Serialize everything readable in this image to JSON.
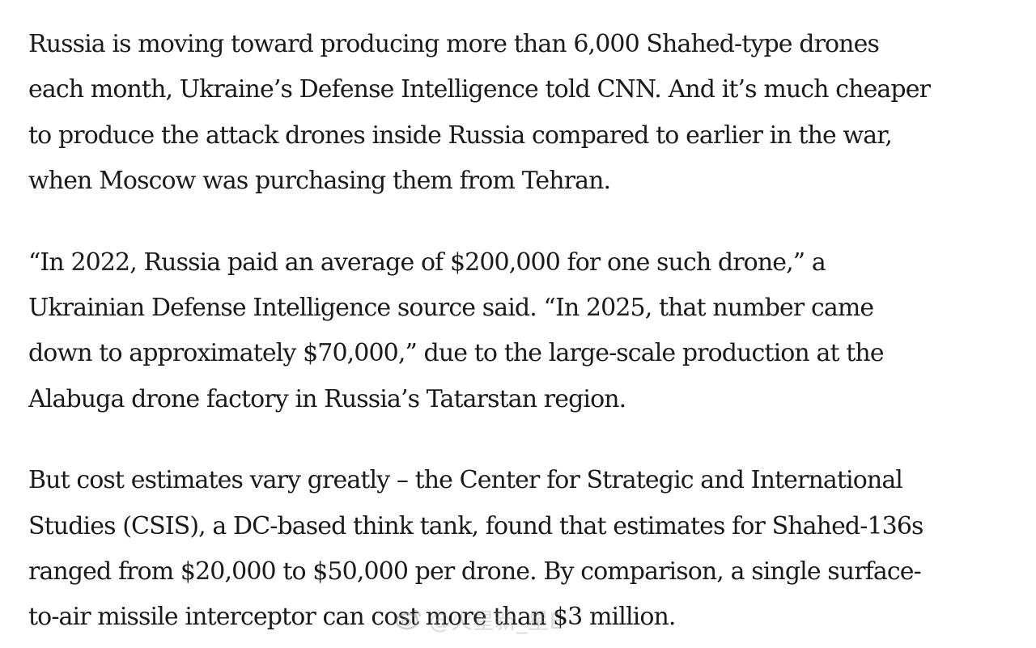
{
  "article": {
    "paragraphs": [
      {
        "lines": [
          "Russia is moving toward producing more than 6,000 Shahed-type drones",
          "each month, Ukraine’s Defense Intelligence told CNN. And it’s much cheaper",
          "to produce the attack drones inside Russia compared to earlier in the war,",
          "when Moscow was purchasing them from Tehran."
        ]
      },
      {
        "lines": [
          "“In 2022, Russia paid an average of $200,000 for one such drone,” a",
          "Ukrainian Defense Intelligence source said. “In 2025, that number came",
          "down to approximately $70,000,” due to the large-scale production at the",
          "Alabuga drone factory in Russia’s Tatarstan region."
        ]
      },
      {
        "lines": [
          "But cost estimates vary greatly – the Center for Strategic and International",
          "Studies (CSIS), a DC-based think tank, found that estimates for Shahed-136s",
          "ranged from $20,000 to $50,000 per drone. By comparison, a single surface-",
          "to-air missile interceptor can cost more than $3 million."
        ]
      }
    ]
  },
  "watermark": {
    "text": "@火星新_星E"
  }
}
